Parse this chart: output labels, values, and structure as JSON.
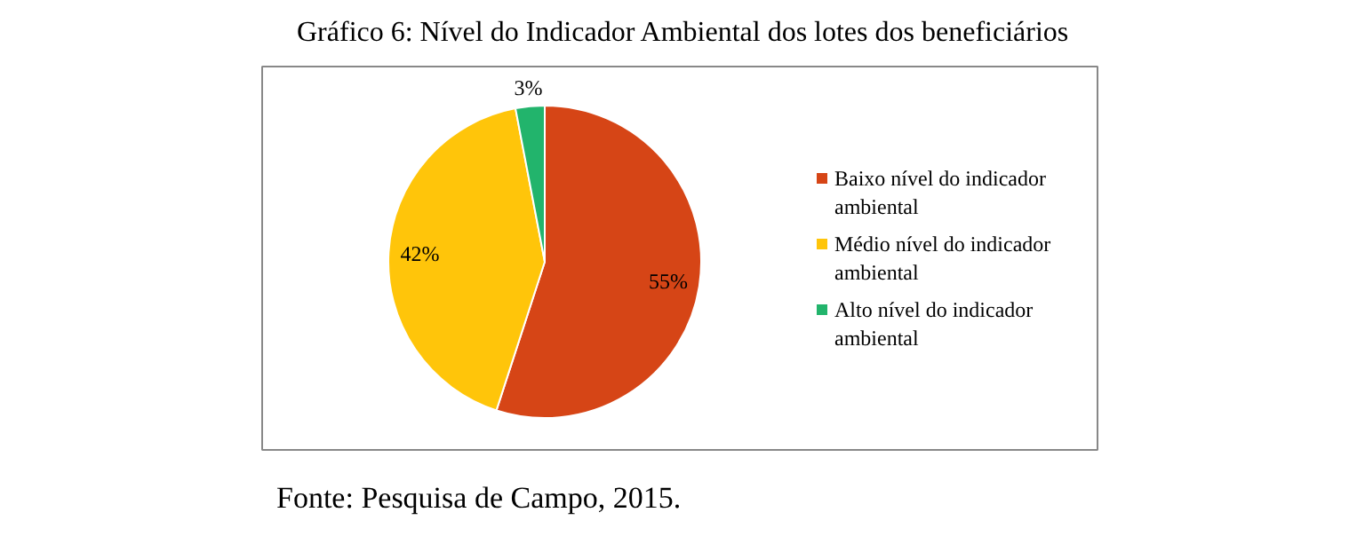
{
  "chart_data": {
    "type": "pie",
    "title": "Gráfico 6: Nível do Indicador Ambiental dos lotes dos beneficiários",
    "categories": [
      "Baixo nível do indicador ambiental",
      "Médio nível do indicador ambiental",
      "Alto nível do indicador ambiental"
    ],
    "values": [
      55,
      42,
      3
    ],
    "value_labels": [
      "55%",
      "42%",
      "3%"
    ],
    "colors": [
      "#d64516",
      "#ffc50a",
      "#22b46c"
    ],
    "legend": "right",
    "annotations": [
      "Fonte: Pesquisa de Campo, 2015."
    ]
  }
}
